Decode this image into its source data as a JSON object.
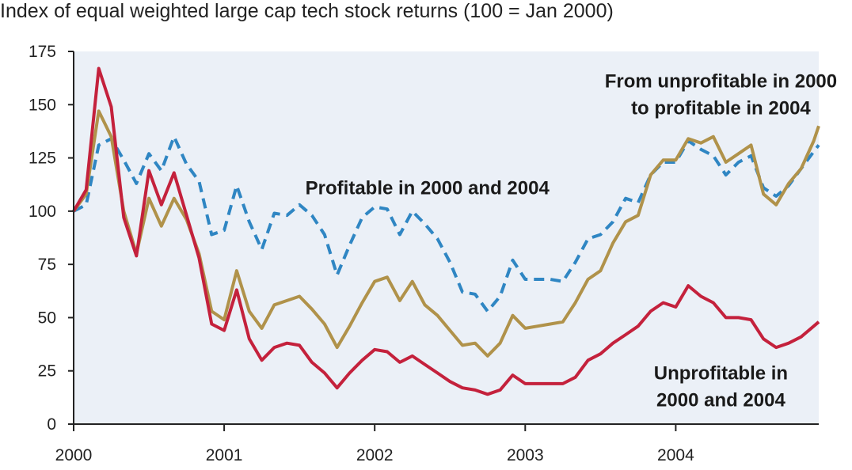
{
  "chart_data": {
    "type": "line",
    "title": "Index of equal weighted large cap tech stock returns (100 = Jan 2000)",
    "xlabel": "",
    "ylabel": "",
    "xlim": [
      2000,
      2004.95
    ],
    "ylim": [
      0,
      175
    ],
    "yticks": [
      0,
      25,
      50,
      75,
      100,
      125,
      150,
      175
    ],
    "xticks": [
      {
        "value": 2000,
        "label": "2000"
      },
      {
        "value": 2001,
        "label": "2001"
      },
      {
        "value": 2002,
        "label": "2002"
      },
      {
        "value": 2003,
        "label": "2003"
      },
      {
        "value": 2004,
        "label": "2004"
      }
    ],
    "grid": false,
    "series": [
      {
        "name": "Profitable in 2000 and 2004",
        "color": "#2f86c3",
        "dash": "dashed",
        "points": [
          [
            2000.0,
            100
          ],
          [
            2000.083,
            103
          ],
          [
            2000.167,
            131
          ],
          [
            2000.25,
            134
          ],
          [
            2000.333,
            124
          ],
          [
            2000.417,
            113
          ],
          [
            2000.5,
            127
          ],
          [
            2000.583,
            119
          ],
          [
            2000.667,
            135
          ],
          [
            2000.75,
            122
          ],
          [
            2000.833,
            114
          ],
          [
            2000.917,
            89
          ],
          [
            2001.0,
            91
          ],
          [
            2001.083,
            112
          ],
          [
            2001.167,
            95
          ],
          [
            2001.25,
            82
          ],
          [
            2001.333,
            99
          ],
          [
            2001.417,
            98
          ],
          [
            2001.5,
            103
          ],
          [
            2001.583,
            98
          ],
          [
            2001.667,
            89
          ],
          [
            2001.75,
            70
          ],
          [
            2001.833,
            84
          ],
          [
            2001.917,
            97
          ],
          [
            2002.0,
            102
          ],
          [
            2002.083,
            101
          ],
          [
            2002.167,
            89
          ],
          [
            2002.25,
            100
          ],
          [
            2002.333,
            94
          ],
          [
            2002.417,
            87
          ],
          [
            2002.5,
            76
          ],
          [
            2002.583,
            62
          ],
          [
            2002.667,
            61
          ],
          [
            2002.75,
            53
          ],
          [
            2002.833,
            60
          ],
          [
            2002.917,
            77
          ],
          [
            2003.0,
            68
          ],
          [
            2003.083,
            68
          ],
          [
            2003.167,
            68
          ],
          [
            2003.25,
            67
          ],
          [
            2003.333,
            76
          ],
          [
            2003.417,
            87
          ],
          [
            2003.5,
            89
          ],
          [
            2003.583,
            95
          ],
          [
            2003.667,
            106
          ],
          [
            2003.75,
            104
          ],
          [
            2003.833,
            117
          ],
          [
            2003.917,
            123
          ],
          [
            2004.0,
            123
          ],
          [
            2004.083,
            133
          ],
          [
            2004.167,
            129
          ],
          [
            2004.25,
            126
          ],
          [
            2004.333,
            117
          ],
          [
            2004.417,
            123
          ],
          [
            2004.5,
            126
          ],
          [
            2004.583,
            111
          ],
          [
            2004.667,
            107
          ],
          [
            2004.75,
            112
          ],
          [
            2004.833,
            120
          ],
          [
            2004.917,
            128
          ],
          [
            2004.95,
            131
          ]
        ]
      },
      {
        "name": "From unprofitable in 2000 to profitable in 2004",
        "color": "#b0924a",
        "dash": "solid",
        "points": [
          [
            2000.0,
            100
          ],
          [
            2000.083,
            108
          ],
          [
            2000.167,
            147
          ],
          [
            2000.25,
            135
          ],
          [
            2000.333,
            100
          ],
          [
            2000.417,
            80
          ],
          [
            2000.5,
            106
          ],
          [
            2000.583,
            93
          ],
          [
            2000.667,
            106
          ],
          [
            2000.75,
            96
          ],
          [
            2000.833,
            80
          ],
          [
            2000.917,
            53
          ],
          [
            2001.0,
            49
          ],
          [
            2001.083,
            72
          ],
          [
            2001.167,
            53
          ],
          [
            2001.25,
            45
          ],
          [
            2001.333,
            56
          ],
          [
            2001.417,
            58
          ],
          [
            2001.5,
            60
          ],
          [
            2001.583,
            54
          ],
          [
            2001.667,
            47
          ],
          [
            2001.75,
            36
          ],
          [
            2001.833,
            46
          ],
          [
            2001.917,
            57
          ],
          [
            2002.0,
            67
          ],
          [
            2002.083,
            69
          ],
          [
            2002.167,
            58
          ],
          [
            2002.25,
            67
          ],
          [
            2002.333,
            56
          ],
          [
            2002.417,
            51
          ],
          [
            2002.5,
            44
          ],
          [
            2002.583,
            37
          ],
          [
            2002.667,
            38
          ],
          [
            2002.75,
            32
          ],
          [
            2002.833,
            38
          ],
          [
            2002.917,
            51
          ],
          [
            2003.0,
            45
          ],
          [
            2003.083,
            46
          ],
          [
            2003.167,
            47
          ],
          [
            2003.25,
            48
          ],
          [
            2003.333,
            57
          ],
          [
            2003.417,
            68
          ],
          [
            2003.5,
            72
          ],
          [
            2003.583,
            85
          ],
          [
            2003.667,
            95
          ],
          [
            2003.75,
            98
          ],
          [
            2003.833,
            117
          ],
          [
            2003.917,
            124
          ],
          [
            2004.0,
            124
          ],
          [
            2004.083,
            134
          ],
          [
            2004.167,
            132
          ],
          [
            2004.25,
            135
          ],
          [
            2004.333,
            123
          ],
          [
            2004.417,
            127
          ],
          [
            2004.5,
            131
          ],
          [
            2004.583,
            108
          ],
          [
            2004.667,
            103
          ],
          [
            2004.75,
            113
          ],
          [
            2004.833,
            120
          ],
          [
            2004.917,
            133
          ],
          [
            2004.95,
            140
          ]
        ]
      },
      {
        "name": "Unprofitable in 2000 and 2004",
        "color": "#c4213c",
        "dash": "solid",
        "points": [
          [
            2000.0,
            100
          ],
          [
            2000.083,
            110
          ],
          [
            2000.167,
            167
          ],
          [
            2000.25,
            149
          ],
          [
            2000.333,
            97
          ],
          [
            2000.417,
            79
          ],
          [
            2000.5,
            119
          ],
          [
            2000.583,
            103
          ],
          [
            2000.667,
            118
          ],
          [
            2000.75,
            98
          ],
          [
            2000.833,
            78
          ],
          [
            2000.917,
            47
          ],
          [
            2001.0,
            44
          ],
          [
            2001.083,
            63
          ],
          [
            2001.167,
            40
          ],
          [
            2001.25,
            30
          ],
          [
            2001.333,
            36
          ],
          [
            2001.417,
            38
          ],
          [
            2001.5,
            37
          ],
          [
            2001.583,
            29
          ],
          [
            2001.667,
            24
          ],
          [
            2001.75,
            17
          ],
          [
            2001.833,
            24
          ],
          [
            2001.917,
            30
          ],
          [
            2002.0,
            35
          ],
          [
            2002.083,
            34
          ],
          [
            2002.167,
            29
          ],
          [
            2002.25,
            32
          ],
          [
            2002.333,
            28
          ],
          [
            2002.417,
            24
          ],
          [
            2002.5,
            20
          ],
          [
            2002.583,
            17
          ],
          [
            2002.667,
            16
          ],
          [
            2002.75,
            14
          ],
          [
            2002.833,
            16
          ],
          [
            2002.917,
            23
          ],
          [
            2003.0,
            19
          ],
          [
            2003.083,
            19
          ],
          [
            2003.167,
            19
          ],
          [
            2003.25,
            19
          ],
          [
            2003.333,
            22
          ],
          [
            2003.417,
            30
          ],
          [
            2003.5,
            33
          ],
          [
            2003.583,
            38
          ],
          [
            2003.667,
            42
          ],
          [
            2003.75,
            46
          ],
          [
            2003.833,
            53
          ],
          [
            2003.917,
            57
          ],
          [
            2004.0,
            55
          ],
          [
            2004.083,
            65
          ],
          [
            2004.167,
            60
          ],
          [
            2004.25,
            57
          ],
          [
            2004.333,
            50
          ],
          [
            2004.417,
            50
          ],
          [
            2004.5,
            49
          ],
          [
            2004.583,
            40
          ],
          [
            2004.667,
            36
          ],
          [
            2004.75,
            38
          ],
          [
            2004.833,
            41
          ],
          [
            2004.917,
            46
          ],
          [
            2004.95,
            48
          ]
        ]
      }
    ],
    "annotations": [
      {
        "name": "profitable",
        "lines": [
          "Profitable in 2000 and 2004"
        ],
        "x": 2002.35,
        "y": 111
      },
      {
        "name": "unprofitable-to-profitable",
        "lines": [
          "From unprofitable in 2000",
          "to profitable in 2004"
        ],
        "x": 2004.3,
        "y": 161
      },
      {
        "name": "unprofitable",
        "lines": [
          "Unprofitable in",
          "2000 and 2004"
        ],
        "x": 2004.3,
        "y": 24
      }
    ]
  },
  "colors": {
    "plot_background": "#ebf0f7",
    "axis": "#222222"
  }
}
